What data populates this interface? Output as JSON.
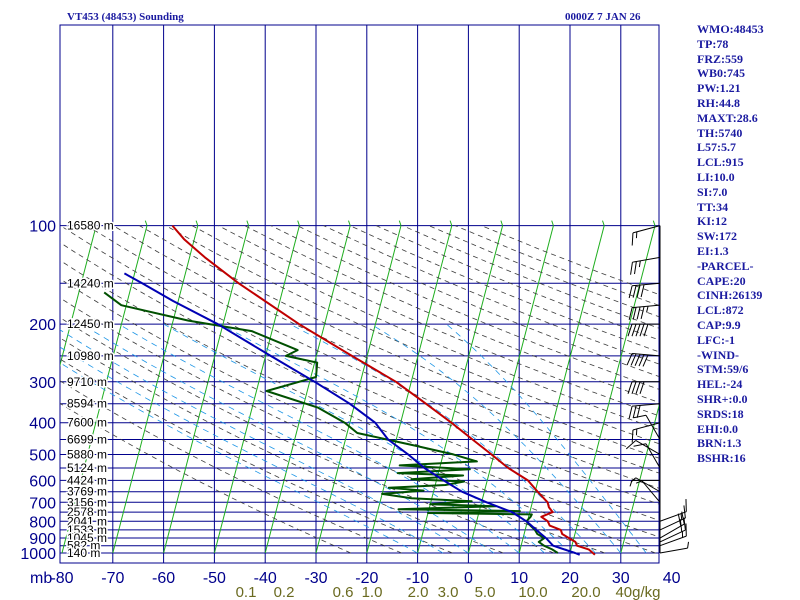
{
  "header": {
    "title": "VT453 (48453) Sounding",
    "valid_time": "0000Z  7 JAN 26"
  },
  "stats": [
    "WMO:48453",
    "TP:78",
    "FRZ:559",
    "WB0:745",
    "PW:1.21",
    "RH:44.8",
    "MAXT:28.6",
    "TH:5740",
    "L57:5.7",
    "LCL:915",
    "LI:10.0",
    "SI:7.0",
    "TT:34",
    "KI:12",
    "SW:172",
    "EI:1.3",
    "-PARCEL-",
    "CAPE:20",
    "CINH:26139",
    "LCL:872",
    "CAP:9.9",
    "LFC:-1",
    "-WIND-",
    "STM:59/6",
    "HEL:-24",
    "SHR+:0.0",
    "SRDS:18",
    "EHI:0.0",
    "BRN:1.3",
    "BSHR:16"
  ],
  "chart_data": {
    "type": "line",
    "title": "VT453 (48453) Sounding",
    "subtitle": "0000Z  7 JAN 26",
    "y_axis": {
      "unit": "mb",
      "scale": "log-pressure",
      "range": [
        1000,
        100
      ],
      "ticks": [
        100,
        200,
        300,
        400,
        500,
        600,
        700,
        800,
        900,
        1000
      ]
    },
    "x_axis": {
      "unit": "°C",
      "range": [
        -80,
        40
      ],
      "skew": "skew-T",
      "ticks": [
        -80,
        -70,
        -60,
        -50,
        -40,
        -30,
        -20,
        -10,
        0,
        10,
        20,
        30,
        40
      ]
    },
    "mixing_ratio_labels": [
      "0.1",
      "0.2",
      "0.6",
      "1.0",
      "2.0",
      "3.0",
      "5.0",
      "10.0",
      "20.0",
      "40g/kg"
    ],
    "height_labels": [
      {
        "p": 100,
        "label": "16580 m"
      },
      {
        "p": 150,
        "label": "14240 m"
      },
      {
        "p": 200,
        "label": "12450 m"
      },
      {
        "p": 250,
        "label": "10980 m"
      },
      {
        "p": 300,
        "label": "9710 m"
      },
      {
        "p": 350,
        "label": "8594 m"
      },
      {
        "p": 400,
        "label": "7600 m"
      },
      {
        "p": 450,
        "label": "6699 m"
      },
      {
        "p": 500,
        "label": "5880 m"
      },
      {
        "p": 550,
        "label": "5124 m"
      },
      {
        "p": 600,
        "label": "4424 m"
      },
      {
        "p": 650,
        "label": "3769 m"
      },
      {
        "p": 700,
        "label": "3156 m"
      },
      {
        "p": 750,
        "label": "2578 m"
      },
      {
        "p": 800,
        "label": "2041 m"
      },
      {
        "p": 850,
        "label": "1533 m"
      },
      {
        "p": 900,
        "label": "1045 m"
      },
      {
        "p": 950,
        "label": "582 m"
      },
      {
        "p": 1000,
        "label": "140 m"
      }
    ],
    "series": [
      {
        "name": "Temperature",
        "color": "#c00000",
        "points": [
          [
            1013,
            25
          ],
          [
            1000,
            24.5
          ],
          [
            975,
            23.5
          ],
          [
            950,
            21
          ],
          [
            925,
            20.5
          ],
          [
            900,
            19
          ],
          [
            875,
            17.5
          ],
          [
            850,
            17
          ],
          [
            825,
            14.6
          ],
          [
            800,
            14
          ],
          [
            775,
            12.5
          ],
          [
            750,
            14.5
          ],
          [
            725,
            13.5
          ],
          [
            700,
            13
          ],
          [
            650,
            10.5
          ],
          [
            600,
            8
          ],
          [
            550,
            3.5
          ],
          [
            500,
            -0.5
          ],
          [
            450,
            -5
          ],
          [
            400,
            -10
          ],
          [
            350,
            -16
          ],
          [
            300,
            -23
          ],
          [
            250,
            -33
          ],
          [
            200,
            -45
          ],
          [
            150,
            -59
          ],
          [
            125,
            -67
          ],
          [
            110,
            -72
          ],
          [
            100,
            -75
          ]
        ]
      },
      {
        "name": "Dewpoint",
        "color": "#005000",
        "points": [
          [
            1000,
            17.6
          ],
          [
            975,
            16.3
          ],
          [
            950,
            14.5
          ],
          [
            925,
            13.3
          ],
          [
            900,
            14.2
          ],
          [
            875,
            12.6
          ],
          [
            850,
            11.9
          ],
          [
            825,
            10.8
          ],
          [
            800,
            9.8
          ],
          [
            775,
            10.4
          ],
          [
            762,
            10.5
          ],
          [
            755,
            -10
          ],
          [
            745,
            8
          ],
          [
            735,
            -16
          ],
          [
            720,
            3
          ],
          [
            710,
            -10
          ],
          [
            695,
            -2
          ],
          [
            680,
            -14
          ],
          [
            660,
            -20
          ],
          [
            645,
            -12
          ],
          [
            632,
            -19
          ],
          [
            620,
            -8
          ],
          [
            605,
            -4.5
          ],
          [
            595,
            -15
          ],
          [
            580,
            -5
          ],
          [
            570,
            -18
          ],
          [
            555,
            -4
          ],
          [
            540,
            -18
          ],
          [
            525,
            -3
          ],
          [
            500,
            -8
          ],
          [
            470,
            -16
          ],
          [
            430,
            -28
          ],
          [
            400,
            -31
          ],
          [
            360,
            -37
          ],
          [
            320,
            -48
          ],
          [
            290,
            -39
          ],
          [
            262,
            -39.5
          ],
          [
            250,
            -46
          ],
          [
            240,
            -44
          ],
          [
            210,
            -54
          ],
          [
            195,
            -67
          ],
          [
            175,
            -81
          ],
          [
            160,
            -85
          ]
        ]
      },
      {
        "name": "Parcel",
        "color": "#0000b4",
        "points": [
          [
            1013,
            22
          ],
          [
            1000,
            21
          ],
          [
            950,
            16.3
          ],
          [
            900,
            14.5
          ],
          [
            872,
            13.2
          ],
          [
            800,
            9.8
          ],
          [
            750,
            6.5
          ],
          [
            700,
            1
          ],
          [
            650,
            -4.4
          ],
          [
            600,
            -8.6
          ],
          [
            550,
            -13
          ],
          [
            500,
            -16.9
          ],
          [
            450,
            -21.6
          ],
          [
            400,
            -25
          ],
          [
            350,
            -31
          ],
          [
            300,
            -39
          ],
          [
            250,
            -49
          ],
          [
            200,
            -61
          ],
          [
            170,
            -71
          ],
          [
            150,
            -78
          ],
          [
            140,
            -82
          ]
        ]
      }
    ],
    "winds": [
      {
        "p": 100,
        "dir": 255,
        "spd": 15
      },
      {
        "p": 125,
        "dir": 260,
        "spd": 25
      },
      {
        "p": 150,
        "dir": 265,
        "spd": 40
      },
      {
        "p": 175,
        "dir": 265,
        "spd": 45
      },
      {
        "p": 200,
        "dir": 270,
        "spd": 50
      },
      {
        "p": 250,
        "dir": 275,
        "spd": 50
      },
      {
        "p": 300,
        "dir": 270,
        "spd": 40
      },
      {
        "p": 350,
        "dir": 265,
        "spd": 30
      },
      {
        "p": 400,
        "dir": 255,
        "spd": 15
      },
      {
        "p": 450,
        "dir": 330,
        "spd": 10
      },
      {
        "p": 500,
        "dir": 300,
        "spd": 10
      },
      {
        "p": 550,
        "dir": 330,
        "spd": 10
      },
      {
        "p": 600,
        "dir": 270,
        "spd": 5
      },
      {
        "p": 650,
        "dir": 300,
        "spd": 5
      },
      {
        "p": 700,
        "dir": 320,
        "spd": 5
      },
      {
        "p": 800,
        "dir": 70,
        "spd": 10
      },
      {
        "p": 850,
        "dir": 65,
        "spd": 15
      },
      {
        "p": 900,
        "dir": 60,
        "spd": 20
      },
      {
        "p": 925,
        "dir": 65,
        "spd": 20
      },
      {
        "p": 950,
        "dir": 70,
        "spd": 15
      },
      {
        "p": 1000,
        "dir": 80,
        "spd": 5
      }
    ],
    "colors": {
      "grid": "#00008c",
      "isotherm": "#1eae1e",
      "dry_adiabat": "#3c3c3c",
      "moist_adiabat": "#1e96e6",
      "text": "#1a1aa0",
      "mix_text": "#6a6a20"
    }
  }
}
